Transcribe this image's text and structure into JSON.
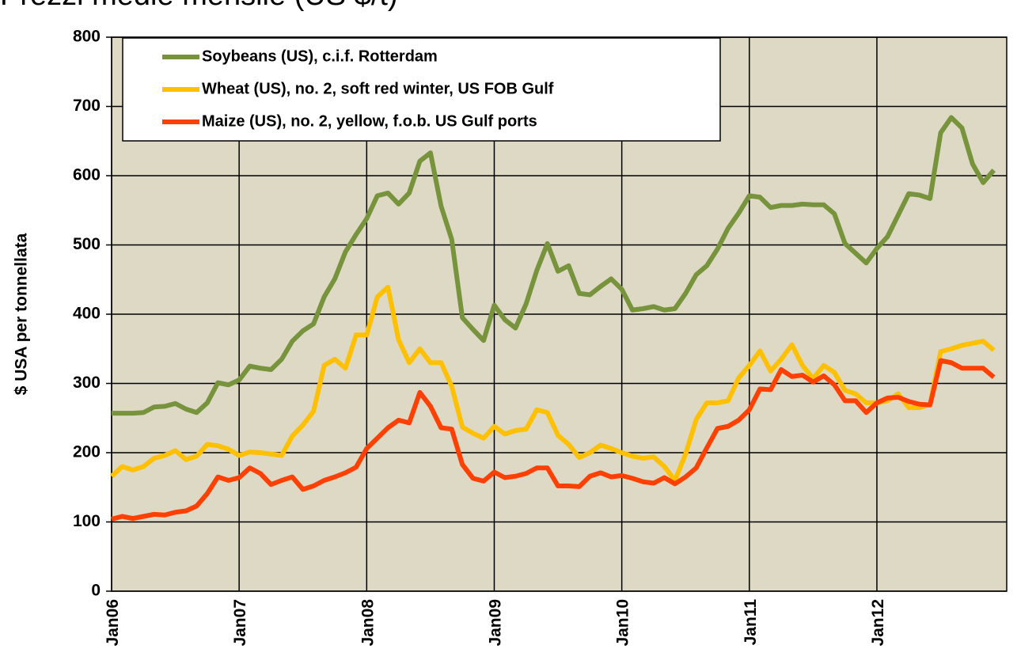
{
  "chart_data": {
    "type": "line",
    "title": "Prezzi medie mensile (US $/t)",
    "y_label": "$ USA per tonnellata",
    "categories": [
      "Jan06",
      null,
      null,
      null,
      null,
      null,
      null,
      null,
      null,
      null,
      null,
      null,
      "Jan07",
      null,
      null,
      null,
      null,
      null,
      null,
      null,
      null,
      null,
      null,
      null,
      "Jan08",
      null,
      null,
      null,
      null,
      null,
      null,
      null,
      null,
      null,
      null,
      null,
      "Jan09",
      null,
      null,
      null,
      null,
      null,
      null,
      null,
      null,
      null,
      null,
      null,
      "Jan10",
      null,
      null,
      null,
      null,
      null,
      null,
      null,
      null,
      null,
      null,
      null,
      "Jan11",
      null,
      null,
      null,
      null,
      null,
      null,
      null,
      null,
      null,
      null,
      null,
      "Jan12",
      null,
      null,
      null,
      null,
      null,
      null,
      null,
      null,
      null,
      null,
      null
    ],
    "series": [
      {
        "name": "Soybeans (US), c.i.f. Rotterdam",
        "color": "#77933c",
        "values": [
          257,
          257,
          257,
          258,
          266,
          267,
          271,
          263,
          258,
          272,
          301,
          298,
          305,
          325,
          322,
          320,
          335,
          361,
          376,
          386,
          425,
          451,
          490,
          515,
          538,
          571,
          575,
          559,
          575,
          621,
          633,
          556,
          508,
          395,
          378,
          362,
          413,
          392,
          380,
          415,
          463,
          502,
          462,
          470,
          430,
          428,
          440,
          451,
          436,
          406,
          408,
          411,
          406,
          408,
          430,
          457,
          470,
          494,
          524,
          546,
          571,
          569,
          554,
          557,
          557,
          559,
          558,
          558,
          545,
          502,
          488,
          474,
          495,
          512,
          543,
          574,
          572,
          567,
          662,
          684,
          669,
          617,
          590,
          608
        ]
      },
      {
        "name": "Wheat (US), no. 2, soft red winter, US FOB Gulf",
        "color": "#ffc000",
        "values": [
          166,
          180,
          175,
          180,
          192,
          196,
          203,
          190,
          195,
          212,
          210,
          205,
          196,
          201,
          200,
          198,
          196,
          224,
          240,
          260,
          326,
          335,
          322,
          370,
          370,
          425,
          439,
          363,
          330,
          350,
          330,
          330,
          296,
          237,
          228,
          221,
          238,
          227,
          232,
          234,
          262,
          258,
          225,
          212,
          193,
          200,
          211,
          206,
          200,
          195,
          192,
          194,
          180,
          160,
          198,
          248,
          272,
          272,
          275,
          308,
          326,
          347,
          318,
          335,
          356,
          326,
          307,
          326,
          316,
          290,
          285,
          272,
          272,
          275,
          285,
          265,
          265,
          270,
          346,
          350,
          355,
          358,
          361,
          348
        ]
      },
      {
        "name": "Maize (US), no. 2, yellow, f.o.b. US Gulf ports",
        "color": "#ff4000",
        "values": [
          104,
          108,
          105,
          108,
          111,
          110,
          114,
          116,
          123,
          141,
          165,
          160,
          164,
          178,
          170,
          154,
          160,
          165,
          147,
          152,
          160,
          165,
          171,
          179,
          206,
          221,
          236,
          247,
          243,
          287,
          267,
          236,
          234,
          183,
          163,
          159,
          172,
          164,
          166,
          170,
          178,
          178,
          152,
          152,
          151,
          166,
          171,
          165,
          167,
          163,
          158,
          156,
          164,
          155,
          165,
          178,
          207,
          235,
          238,
          247,
          262,
          292,
          291,
          320,
          310,
          312,
          302,
          311,
          298,
          275,
          275,
          258,
          272,
          279,
          280,
          274,
          270,
          269,
          333,
          330,
          322,
          322,
          322,
          309
        ]
      }
    ],
    "ylim": [
      0,
      800
    ],
    "yticks": [
      0,
      100,
      200,
      300,
      400,
      500,
      600,
      700,
      800
    ],
    "grid": true,
    "legend": "top-left",
    "background": "#ddd9c4"
  }
}
